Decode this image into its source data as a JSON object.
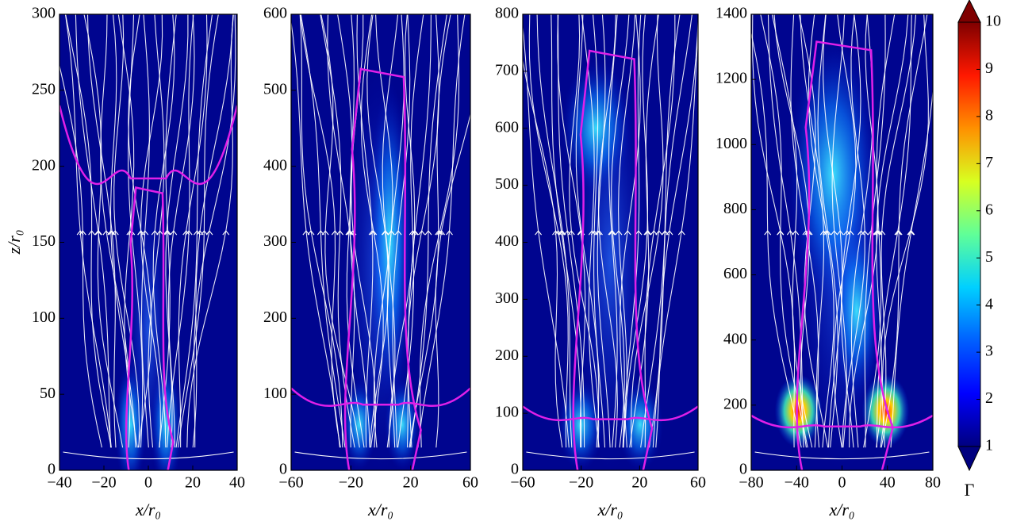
{
  "chart_data": [
    {
      "type": "heatmap",
      "xlabel": "x/r₀",
      "ylabel": "z/r₀",
      "xlim": [
        -40,
        40
      ],
      "xticks": [
        {
          "value": -40,
          "label": "−40"
        },
        {
          "value": -20,
          "label": "−20"
        },
        0,
        20,
        40
      ],
      "ylim": [
        0,
        300
      ],
      "yticks": [
        0,
        50,
        100,
        150,
        200,
        250,
        300
      ]
    },
    {
      "type": "heatmap",
      "xlabel": "x/r₀",
      "xlim": [
        -60,
        60
      ],
      "xticks": [
        {
          "value": -60,
          "label": "−60"
        },
        {
          "value": -20,
          "label": "−20"
        },
        20,
        60
      ],
      "ylim": [
        0,
        600
      ],
      "yticks": [
        0,
        100,
        200,
        300,
        400,
        500,
        600
      ]
    },
    {
      "type": "heatmap",
      "xlabel": "x/r₀",
      "xlim": [
        -60,
        60
      ],
      "xticks": [
        {
          "value": -60,
          "label": "−60"
        },
        {
          "value": -20,
          "label": "−20"
        },
        20,
        60
      ],
      "ylim": [
        0,
        800
      ],
      "yticks": [
        0,
        100,
        200,
        300,
        400,
        500,
        600,
        700,
        800
      ]
    },
    {
      "type": "heatmap",
      "xlabel": "x/r₀",
      "xlim": [
        -80,
        80
      ],
      "xticks": [
        {
          "value": -80,
          "label": "−80"
        },
        {
          "value": -40,
          "label": "−40"
        },
        0,
        40,
        80
      ],
      "ylim": [
        0,
        1400
      ],
      "yticks": [
        0,
        200,
        400,
        600,
        800,
        1000,
        1200,
        1400
      ]
    },
    {
      "type": "colorbar",
      "label": "Γ",
      "clim": [
        1,
        10
      ],
      "ticks": [
        1,
        2,
        3,
        4,
        5,
        6,
        7,
        8,
        9,
        10
      ]
    }
  ]
}
